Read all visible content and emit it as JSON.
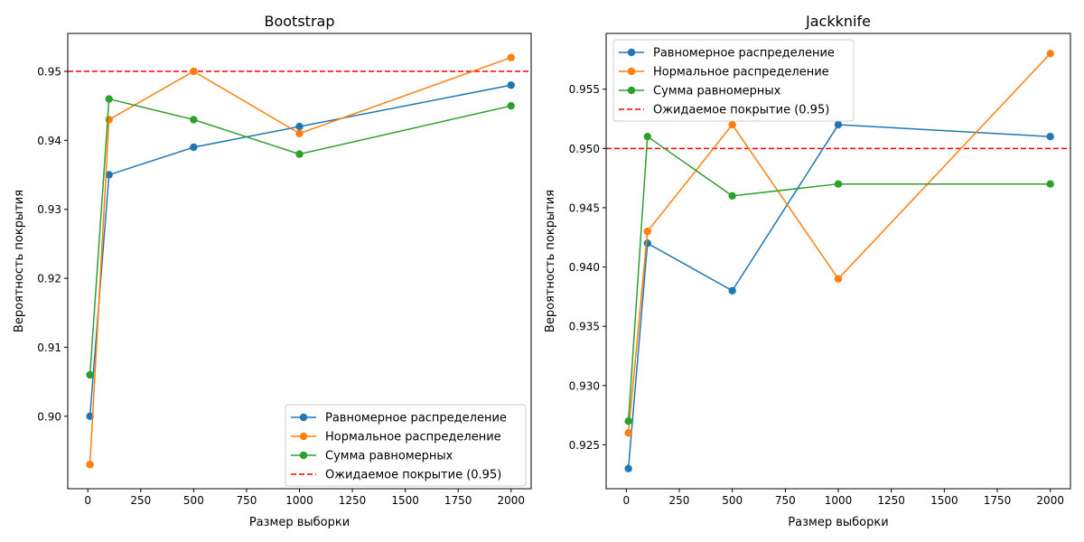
{
  "chart_data": [
    {
      "type": "line",
      "title": "Bootstrap",
      "xlabel": "Размер выборки",
      "ylabel": "Вероятность покрытия",
      "x": [
        10,
        100,
        500,
        1000,
        2000
      ],
      "xlim": [
        -95,
        2095
      ],
      "ylim": [
        0.8895,
        0.9555
      ],
      "xticks": [
        0,
        250,
        500,
        750,
        1000,
        1250,
        1500,
        1750,
        2000
      ],
      "yticks": [
        0.9,
        0.91,
        0.92,
        0.93,
        0.94,
        0.95
      ],
      "ytick_decimals": 2,
      "grid": false,
      "legend_position": "lower-right",
      "series": [
        {
          "name": "Равномерное распределение",
          "color": "#1f77b4",
          "values": [
            0.9,
            0.935,
            0.939,
            0.942,
            0.948
          ]
        },
        {
          "name": "Нормальное распределение",
          "color": "#ff7f0e",
          "values": [
            0.893,
            0.943,
            0.95,
            0.941,
            0.952
          ]
        },
        {
          "name": "Сумма равномерных",
          "color": "#2ca02c",
          "values": [
            0.906,
            0.946,
            0.943,
            0.938,
            0.945
          ]
        }
      ],
      "reference_line": {
        "name": "Ожидаемое покрытие (0.95)",
        "y": 0.95,
        "color": "#ff0000"
      }
    },
    {
      "type": "line",
      "title": "Jackknife",
      "xlabel": "Размер выборки",
      "ylabel": "Вероятность покрытия",
      "x": [
        10,
        100,
        500,
        1000,
        2000
      ],
      "xlim": [
        -95,
        2095
      ],
      "ylim": [
        0.9213,
        0.9597
      ],
      "xticks": [
        0,
        250,
        500,
        750,
        1000,
        1250,
        1500,
        1750,
        2000
      ],
      "yticks": [
        0.925,
        0.93,
        0.935,
        0.94,
        0.945,
        0.95,
        0.955
      ],
      "ytick_decimals": 3,
      "grid": false,
      "legend_position": "upper-left",
      "series": [
        {
          "name": "Равномерное распределение",
          "color": "#1f77b4",
          "values": [
            0.923,
            0.942,
            0.938,
            0.952,
            0.951
          ]
        },
        {
          "name": "Нормальное распределение",
          "color": "#ff7f0e",
          "values": [
            0.926,
            0.943,
            0.952,
            0.939,
            0.958
          ]
        },
        {
          "name": "Сумма равномерных",
          "color": "#2ca02c",
          "values": [
            0.927,
            0.951,
            0.946,
            0.947,
            0.947
          ]
        }
      ],
      "reference_line": {
        "name": "Ожидаемое покрытие (0.95)",
        "y": 0.95,
        "color": "#ff0000"
      }
    }
  ]
}
